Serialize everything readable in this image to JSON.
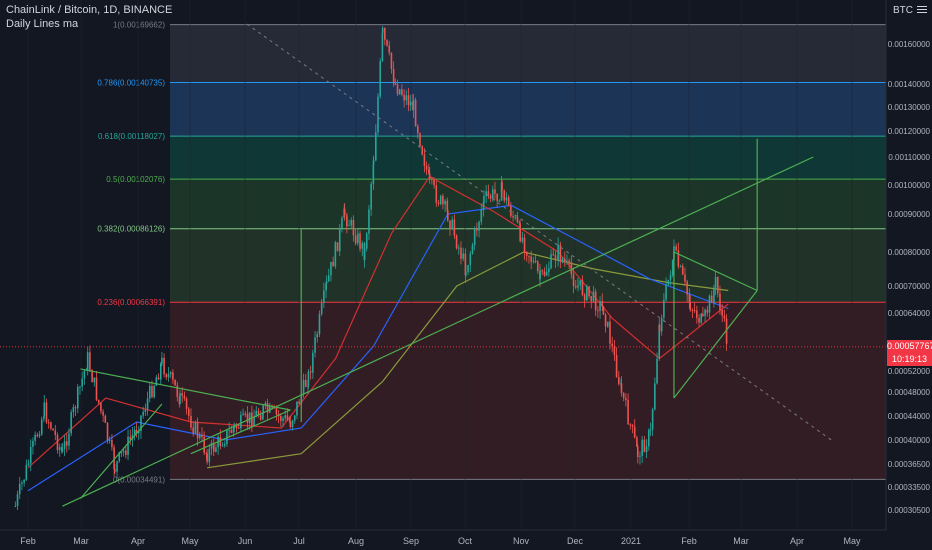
{
  "header": {
    "symbol": "ChainLink / Bitcoin, 1D, BINANCE",
    "indicator": "Daily Lines ma"
  },
  "axis": {
    "currency": "BTC",
    "menu_icon": "menu-icon"
  },
  "price_tag": {
    "value": "0.00057767",
    "countdown": "10:19:13",
    "color": "#f23645"
  },
  "colors": {
    "bg": "#131722",
    "up": "#26a69a",
    "down": "#ef5350",
    "fib_red": "#f23645",
    "trend": "#4caf50"
  },
  "chart_data": {
    "type": "candlestick",
    "y_axis": "linear",
    "ylim": [
      0.000275,
      0.00175
    ],
    "x_ticks": [
      "Feb",
      "Mar",
      "Apr",
      "May",
      "Jun",
      "Jul",
      "Aug",
      "Sep",
      "Oct",
      "Nov",
      "Dec",
      "2021",
      "Feb",
      "Mar",
      "Apr",
      "May"
    ],
    "y_ticks": [
      "0.00160000",
      "0.00140000",
      "0.00130000",
      "0.00120000",
      "0.00110000",
      "0.00100000",
      "0.00090000",
      "0.00080000",
      "0.00070000",
      "0.00064000",
      "0.00058000",
      "0.00052000",
      "0.00048000",
      "0.00044000",
      "0.00040000",
      "0.00036500",
      "0.00033500",
      "0.00030500"
    ],
    "y_tick_values": [
      0.0016,
      0.0014,
      0.0013,
      0.0012,
      0.0011,
      0.001,
      0.0009,
      0.0008,
      0.0007,
      0.00064,
      0.00058,
      0.00052,
      0.00048,
      0.00044,
      0.0004,
      0.000365,
      0.000335,
      0.000305
    ],
    "fib_levels": [
      {
        "label": "1(0.00169662)",
        "value": 0.00169662,
        "color": "#787b86"
      },
      {
        "label": "0.786(0.00140735)",
        "value": 0.00140735,
        "color": "#2196f3"
      },
      {
        "label": "0.618(0.00118027)",
        "value": 0.00118027,
        "color": "#26a69a"
      },
      {
        "label": "0.5(0.00102076)",
        "value": 0.00102076,
        "color": "#4caf50"
      },
      {
        "label": "0.382(0.00086126)",
        "value": 0.00086126,
        "color": "#81c784"
      },
      {
        "label": "0.236(0.00066391)",
        "value": 0.00066391,
        "color": "#f23645"
      },
      {
        "label": "0(0.00034491)",
        "value": 0.00034491,
        "color": "#787b86"
      }
    ],
    "price_path": [
      [
        "2020-01-25",
        0.00031
      ],
      [
        "2020-02-10",
        0.00045
      ],
      [
        "2020-02-20",
        0.00038
      ],
      [
        "2020-03-05",
        0.00055
      ],
      [
        "2020-03-20",
        0.00036
      ],
      [
        "2020-04-01",
        0.00042
      ],
      [
        "2020-04-15",
        0.00054
      ],
      [
        "2020-04-25",
        0.00047
      ],
      [
        "2020-05-10",
        0.00038
      ],
      [
        "2020-05-25",
        0.00042
      ],
      [
        "2020-06-10",
        0.00045
      ],
      [
        "2020-06-25",
        0.00043
      ],
      [
        "2020-07-05",
        0.00051
      ],
      [
        "2020-07-15",
        0.0007
      ],
      [
        "2020-07-25",
        0.0009
      ],
      [
        "2020-08-05",
        0.0008
      ],
      [
        "2020-08-10",
        0.0011
      ],
      [
        "2020-08-15",
        0.00165
      ],
      [
        "2020-08-22",
        0.0014
      ],
      [
        "2020-09-01",
        0.0013
      ],
      [
        "2020-09-10",
        0.001
      ],
      [
        "2020-09-20",
        0.0009
      ],
      [
        "2020-09-30",
        0.00075
      ],
      [
        "2020-10-10",
        0.00095
      ],
      [
        "2020-10-20",
        0.00098
      ],
      [
        "2020-10-30",
        0.00085
      ],
      [
        "2020-11-10",
        0.00072
      ],
      [
        "2020-11-20",
        0.0008
      ],
      [
        "2020-12-01",
        0.0007
      ],
      [
        "2020-12-15",
        0.00065
      ],
      [
        "2020-12-25",
        0.00048
      ],
      [
        "2021-01-03",
        0.00038
      ],
      [
        "2021-01-10",
        0.00041
      ],
      [
        "2021-01-15",
        0.00062
      ],
      [
        "2021-01-23",
        0.0008
      ],
      [
        "2021-02-01",
        0.00066
      ],
      [
        "2021-02-08",
        0.00062
      ],
      [
        "2021-02-15",
        0.00071
      ],
      [
        "2021-02-22",
        0.000578
      ]
    ],
    "ma_red": [
      [
        "2020-02-01",
        0.00036
      ],
      [
        "2020-03-15",
        0.00047
      ],
      [
        "2020-05-01",
        0.00043
      ],
      [
        "2020-06-20",
        0.00042
      ],
      [
        "2020-07-20",
        0.00055
      ],
      [
        "2020-08-20",
        0.00085
      ],
      [
        "2020-09-10",
        0.00103
      ],
      [
        "2020-10-15",
        0.00091
      ],
      [
        "2020-11-20",
        0.0008
      ],
      [
        "2020-12-20",
        0.00063
      ],
      [
        "2021-01-15",
        0.00055
      ],
      [
        "2021-02-22",
        0.00066
      ]
    ],
    "ma_blue": [
      [
        "2020-02-01",
        0.00033
      ],
      [
        "2020-04-01",
        0.00043
      ],
      [
        "2020-05-20",
        0.0004
      ],
      [
        "2020-07-01",
        0.00042
      ],
      [
        "2020-08-10",
        0.00058
      ],
      [
        "2020-09-20",
        0.0009
      ],
      [
        "2020-10-25",
        0.00093
      ],
      [
        "2020-12-01",
        0.00083
      ],
      [
        "2021-01-10",
        0.00072
      ],
      [
        "2021-02-22",
        0.00065
      ]
    ],
    "ma_olive": [
      [
        "2020-05-10",
        0.00036
      ],
      [
        "2020-07-01",
        0.00038
      ],
      [
        "2020-08-15",
        0.0005
      ],
      [
        "2020-09-25",
        0.0007
      ],
      [
        "2020-11-01",
        0.0008
      ],
      [
        "2020-12-10",
        0.00075
      ],
      [
        "2021-01-20",
        0.00071
      ],
      [
        "2021-02-22",
        0.00069
      ]
    ],
    "trendlines": [
      [
        [
          "2020-02-20",
          0.00031
        ],
        [
          "2021-04-10",
          0.0011
        ]
      ],
      [
        [
          "2020-03-01",
          0.000525
        ],
        [
          "2020-06-25",
          0.00045
        ]
      ],
      [
        [
          "2020-05-01",
          0.00038
        ],
        [
          "2020-06-25",
          0.00045
        ]
      ],
      [
        [
          "2020-03-01",
          0.00032
        ],
        [
          "2020-04-15",
          0.00046
        ]
      ],
      [
        [
          "2021-01-23",
          0.0008
        ],
        [
          "2021-03-10",
          0.00069
        ]
      ],
      [
        [
          "2021-01-23",
          0.00047
        ],
        [
          "2021-03-10",
          0.00069
        ]
      ],
      [
        [
          "2021-01-23",
          0.00047
        ],
        [
          "2021-01-23",
          0.0008
        ]
      ],
      [
        [
          "2020-07-01",
          0.00043
        ],
        [
          "2020-07-01",
          0.00086
        ]
      ],
      [
        [
          "2021-03-10",
          0.00069
        ],
        [
          "2021-03-10",
          0.00117
        ]
      ]
    ],
    "diagonal_dashed": [
      [
        "2020-06-01",
        0.0017
      ],
      [
        "2021-04-20",
        0.0004
      ]
    ]
  }
}
